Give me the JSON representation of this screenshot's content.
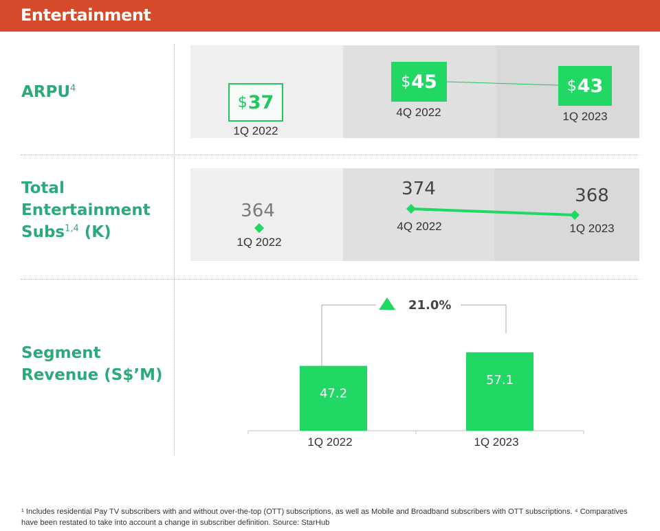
{
  "header": {
    "title": "Entertainment"
  },
  "arpu": {
    "label": "ARPU",
    "label_sup": "4",
    "items": [
      {
        "period": "1Q 2022",
        "currency": "$",
        "value": "37"
      },
      {
        "period": "4Q 2022",
        "currency": "$",
        "value": "45"
      },
      {
        "period": "1Q 2023",
        "currency": "$",
        "value": "43"
      }
    ]
  },
  "subs": {
    "label_line1": "Total",
    "label_line2": "Entertainment",
    "label_line3_pre": "Subs",
    "label_sup": "1,4",
    "label_line3_post": " (K)",
    "items": [
      {
        "period": "1Q 2022",
        "value": "364"
      },
      {
        "period": "4Q 2022",
        "value": "374"
      },
      {
        "period": "1Q 2023",
        "value": "368"
      }
    ]
  },
  "revenue": {
    "label_line1": "Segment",
    "label_line2": "Revenue (S$’M)",
    "growth": "21.0%"
  },
  "chart_data": [
    {
      "type": "line",
      "title": "ARPU",
      "categories": [
        "1Q 2022",
        "4Q 2022",
        "1Q 2023"
      ],
      "values": [
        37,
        45,
        43
      ],
      "unit": "$"
    },
    {
      "type": "line",
      "title": "Total Entertainment Subs (K)",
      "categories": [
        "1Q 2022",
        "4Q 2022",
        "1Q 2023"
      ],
      "values": [
        364,
        374,
        368
      ]
    },
    {
      "type": "bar",
      "title": "Segment Revenue (S$’M)",
      "categories": [
        "1Q 2022",
        "1Q 2023"
      ],
      "values": [
        47.2,
        57.1
      ],
      "ylim": [
        0,
        70
      ],
      "growth_annotation": "21.0%"
    }
  ],
  "footnote": "¹ Includes residential Pay TV subscribers with and without over-the-top (OTT) subscriptions, as well as Mobile and Broadband subscribers with OTT subscriptions. ⁴ Comparatives have been restated to take into account a change in subscriber definition. Source: StarHub",
  "colors": {
    "header": "#d44a2a",
    "label_green": "#2ea979",
    "bar_green": "#22d865",
    "line_green": "#22c55e"
  }
}
